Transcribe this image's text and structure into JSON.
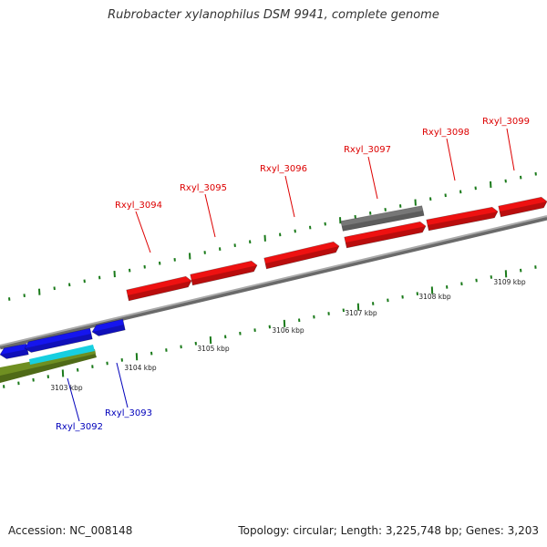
{
  "title": "Rubrobacter xylanophilus DSM 9941, complete genome",
  "footer": {
    "accession": "Accession: NC_008148",
    "topology": "Topology: circular; Length: 3,225,748 bp; Genes: 3,203"
  },
  "colors": {
    "forward_gene": "#ee1111",
    "forward_label": "#dd0000",
    "reverse_gene": "#1515ee",
    "reverse_label": "#0000bb",
    "rna_gene": "#777777",
    "cyan_feature": "#17cfe0",
    "olive_feature": "#6f8f21",
    "backbone": "#888888",
    "tick": "#1a7a1a"
  },
  "genome_axis": {
    "kbp_labels": [
      "3103 kbp",
      "3104 kbp",
      "3105 kbp",
      "3106 kbp",
      "3107 kbp",
      "3108 kbp",
      "3109 kbp"
    ]
  },
  "genes": {
    "forward": [
      {
        "label": "Rxyl_3094"
      },
      {
        "label": "Rxyl_3095"
      },
      {
        "label": "Rxyl_3096"
      },
      {
        "label": "Rxyl_3097"
      },
      {
        "label": "Rxyl_3098"
      },
      {
        "label": "Rxyl_3099"
      }
    ],
    "reverse": [
      {
        "label": "Rxyl_3092"
      },
      {
        "label": "Rxyl_3093"
      }
    ]
  }
}
